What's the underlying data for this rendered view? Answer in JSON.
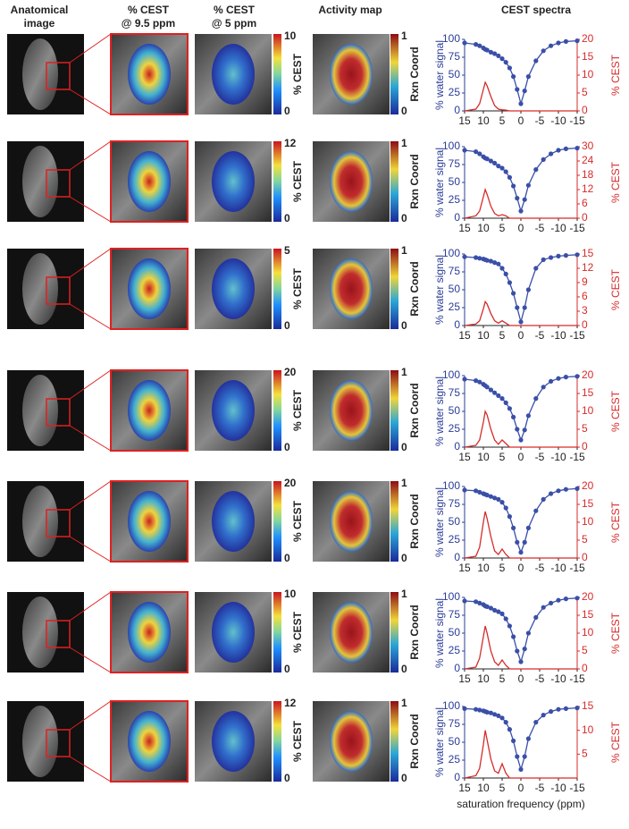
{
  "headers": [
    {
      "lines": [
        "Anatomical",
        "image"
      ]
    },
    {
      "lines": [
        "% CEST",
        "@ 9.5 ppm"
      ]
    },
    {
      "lines": [
        "% CEST",
        "@ 5 ppm"
      ]
    },
    {
      "lines": [
        "Activity map"
      ]
    },
    {
      "lines": [
        "CEST spectra"
      ]
    }
  ],
  "rows": [
    {
      "cest_max": 10,
      "cest_min": 0,
      "cest_label": "% CEST",
      "act_max": 1,
      "act_min": 0,
      "act_label": "Rxn Coord"
    },
    {
      "cest_max": 12,
      "cest_min": 0,
      "cest_label": "% CEST",
      "act_max": 1,
      "act_min": 0,
      "act_label": "Rxn Coord"
    },
    {
      "cest_max": 5,
      "cest_min": 0,
      "cest_label": "% CEST",
      "act_max": 1,
      "act_min": 0,
      "act_label": "Rxn Coord"
    },
    {
      "cest_max": 20,
      "cest_min": 0,
      "cest_label": "% CEST",
      "act_max": 1,
      "act_min": 0,
      "act_label": "Rxn Coord"
    },
    {
      "cest_max": 20,
      "cest_min": 0,
      "cest_label": "% CEST",
      "act_max": 1,
      "act_min": 0,
      "act_label": "Rxn Coord"
    },
    {
      "cest_max": 10,
      "cest_min": 0,
      "cest_label": "% CEST",
      "act_max": 1,
      "act_min": 0,
      "act_label": "Rxn Coord"
    },
    {
      "cest_max": 12,
      "cest_min": 0,
      "cest_label": "% CEST",
      "act_max": 1,
      "act_min": 0,
      "act_label": "Rxn Coord"
    }
  ],
  "chart_data": [
    {
      "type": "line",
      "y_label": "% water signal",
      "y2_label": "% CEST",
      "x": [
        15,
        12,
        11,
        10,
        9.5,
        9,
        8,
        7,
        6,
        5,
        4,
        3,
        2,
        1,
        0,
        -1,
        -2,
        -4,
        -6,
        -8,
        -10,
        -12,
        -15
      ],
      "xlim": [
        15,
        -15
      ],
      "xticks": [
        15,
        10,
        5,
        0,
        -5,
        -10,
        -15
      ],
      "ylim": [
        0,
        100
      ],
      "yticks": [
        0,
        25,
        50,
        75,
        100
      ],
      "y2lim": [
        0,
        20
      ],
      "y2ticks": [
        0,
        5,
        10,
        15,
        20
      ],
      "series": [
        {
          "color": "#3a4fa8",
          "values": [
            95,
            93,
            91,
            88,
            86,
            85,
            82,
            80,
            77,
            73,
            68,
            60,
            48,
            30,
            10,
            28,
            48,
            70,
            84,
            91,
            95,
            97,
            98
          ]
        },
        {
          "color": "#d62b2b",
          "axis": "y2",
          "values": [
            0,
            0.5,
            2,
            6,
            8,
            7,
            4,
            1.5,
            0.5,
            0.3,
            0.2,
            0,
            0,
            0,
            0,
            0,
            0,
            0,
            0,
            0,
            0,
            0,
            0
          ]
        }
      ]
    },
    {
      "type": "line",
      "y_label": "% water signal",
      "y2_label": "% CEST",
      "x": [
        15,
        12,
        11,
        10,
        9.5,
        9,
        8,
        7,
        6,
        5,
        4,
        3,
        2,
        1,
        0,
        -1,
        -2,
        -4,
        -6,
        -8,
        -10,
        -12,
        -15
      ],
      "xlim": [
        15,
        -15
      ],
      "xticks": [
        15,
        10,
        5,
        0,
        -5,
        -10,
        -15
      ],
      "ylim": [
        0,
        100
      ],
      "yticks": [
        0,
        25,
        50,
        75,
        100
      ],
      "y2lim": [
        0,
        30
      ],
      "y2ticks": [
        0,
        6,
        12,
        18,
        24,
        30
      ],
      "series": [
        {
          "color": "#3a4fa8",
          "values": [
            95,
            93,
            90,
            86,
            84,
            83,
            80,
            77,
            73,
            70,
            65,
            57,
            45,
            28,
            10,
            26,
            46,
            68,
            82,
            90,
            95,
            97,
            98
          ]
        },
        {
          "color": "#d62b2b",
          "axis": "y2",
          "values": [
            0,
            1,
            3,
            9,
            12,
            10,
            5,
            2,
            1,
            1.5,
            1,
            0,
            0,
            0,
            0,
            0,
            0,
            0,
            0,
            0,
            0,
            0,
            0
          ]
        }
      ]
    },
    {
      "type": "line",
      "y_label": "% water signal",
      "y2_label": "% CEST",
      "x": [
        15,
        12,
        11,
        10,
        9.5,
        9,
        8,
        7,
        6,
        5,
        4,
        3,
        2,
        1,
        0,
        -1,
        -2,
        -4,
        -6,
        -8,
        -10,
        -12,
        -15
      ],
      "xlim": [
        15,
        -15
      ],
      "xticks": [
        15,
        10,
        5,
        0,
        -5,
        -10,
        -15
      ],
      "ylim": [
        0,
        100
      ],
      "yticks": [
        0,
        25,
        50,
        75,
        100
      ],
      "y2lim": [
        0,
        15
      ],
      "y2ticks": [
        0,
        3,
        6,
        9,
        12,
        15
      ],
      "series": [
        {
          "color": "#3a4fa8",
          "values": [
            96,
            95,
            94,
            93,
            92,
            91,
            90,
            88,
            86,
            80,
            72,
            60,
            45,
            25,
            5,
            25,
            50,
            80,
            92,
            95,
            97,
            98,
            99
          ]
        },
        {
          "color": "#d62b2b",
          "axis": "y2",
          "values": [
            0,
            0.3,
            1,
            3.5,
            5,
            4.5,
            2.5,
            1,
            0.5,
            1,
            0.5,
            0,
            0,
            0,
            0,
            0,
            0,
            0,
            0,
            0,
            0,
            0,
            0
          ]
        }
      ]
    },
    {
      "type": "line",
      "y_label": "% water signal",
      "y2_label": "% CEST",
      "x": [
        15,
        12,
        11,
        10,
        9.5,
        9,
        8,
        7,
        6,
        5,
        4,
        3,
        2,
        1,
        0,
        -1,
        -2,
        -4,
        -6,
        -8,
        -10,
        -12,
        -15
      ],
      "xlim": [
        15,
        -15
      ],
      "xticks": [
        15,
        10,
        5,
        0,
        -5,
        -10,
        -15
      ],
      "ylim": [
        0,
        100
      ],
      "yticks": [
        0,
        25,
        50,
        75,
        100
      ],
      "y2lim": [
        0,
        20
      ],
      "y2ticks": [
        0,
        5,
        10,
        15,
        20
      ],
      "series": [
        {
          "color": "#3a4fa8",
          "values": [
            95,
            93,
            91,
            88,
            86,
            84,
            80,
            76,
            72,
            68,
            62,
            54,
            42,
            25,
            10,
            24,
            44,
            68,
            84,
            92,
            96,
            98,
            99
          ]
        },
        {
          "color": "#d62b2b",
          "axis": "y2",
          "values": [
            0,
            0.5,
            2,
            7,
            10,
            9,
            5,
            2,
            0.8,
            2,
            1,
            0,
            0,
            0,
            0,
            0,
            0,
            0,
            0,
            0,
            0,
            0,
            0
          ]
        }
      ]
    },
    {
      "type": "line",
      "y_label": "% water signal",
      "y2_label": "% CEST",
      "x": [
        15,
        12,
        11,
        10,
        9.5,
        9,
        8,
        7,
        6,
        5,
        4,
        3,
        2,
        1,
        0,
        -1,
        -2,
        -4,
        -6,
        -8,
        -10,
        -12,
        -15
      ],
      "xlim": [
        15,
        -15
      ],
      "xticks": [
        15,
        10,
        5,
        0,
        -5,
        -10,
        -15
      ],
      "ylim": [
        0,
        100
      ],
      "yticks": [
        0,
        25,
        50,
        75,
        100
      ],
      "y2lim": [
        0,
        20
      ],
      "y2ticks": [
        0,
        5,
        10,
        15,
        20
      ],
      "series": [
        {
          "color": "#3a4fa8",
          "values": [
            95,
            94,
            92,
            90,
            89,
            88,
            86,
            84,
            82,
            78,
            70,
            58,
            42,
            22,
            8,
            22,
            42,
            66,
            82,
            90,
            94,
            96,
            97
          ]
        },
        {
          "color": "#d62b2b",
          "axis": "y2",
          "values": [
            0,
            0.5,
            3,
            10,
            13,
            11,
            6,
            2,
            1,
            2.5,
            1,
            0,
            0,
            0,
            0,
            0,
            0,
            0,
            0,
            0,
            0,
            0,
            0
          ]
        }
      ]
    },
    {
      "type": "line",
      "y_label": "% water signal",
      "y2_label": "% CEST",
      "x": [
        15,
        12,
        11,
        10,
        9.5,
        9,
        8,
        7,
        6,
        5,
        4,
        3,
        2,
        1,
        0,
        -1,
        -2,
        -4,
        -6,
        -8,
        -10,
        -12,
        -15
      ],
      "xlim": [
        15,
        -15
      ],
      "xticks": [
        15,
        10,
        5,
        0,
        -5,
        -10,
        -15
      ],
      "ylim": [
        0,
        100
      ],
      "yticks": [
        0,
        25,
        50,
        75,
        100
      ],
      "y2lim": [
        0,
        20
      ],
      "y2ticks": [
        0,
        5,
        10,
        15,
        20
      ],
      "series": [
        {
          "color": "#3a4fa8",
          "values": [
            95,
            94,
            92,
            90,
            88,
            87,
            85,
            82,
            80,
            77,
            70,
            60,
            45,
            25,
            10,
            28,
            50,
            72,
            86,
            92,
            96,
            98,
            99
          ]
        },
        {
          "color": "#d62b2b",
          "axis": "y2",
          "values": [
            0,
            0.5,
            3,
            9,
            12,
            10,
            5,
            2,
            1,
            2.5,
            1,
            0,
            0,
            0,
            0,
            0,
            0,
            0,
            0,
            0,
            0,
            0,
            0
          ]
        }
      ]
    },
    {
      "type": "line",
      "y_label": "% water signal",
      "y2_label": "% CEST",
      "x_label": "saturation frequency (ppm)",
      "x": [
        15,
        12,
        11,
        10,
        9.5,
        9,
        8,
        7,
        6,
        5,
        4,
        3,
        2,
        1,
        0,
        -1,
        -2,
        -4,
        -6,
        -8,
        -10,
        -12,
        -15
      ],
      "xlim": [
        15,
        -15
      ],
      "xticks": [
        15,
        10,
        5,
        0,
        -5,
        -10,
        -15
      ],
      "ylim": [
        0,
        100
      ],
      "yticks": [
        0,
        25,
        50,
        75,
        100
      ],
      "y2lim": [
        0,
        15
      ],
      "y2ticks": [
        5,
        10,
        15
      ],
      "series": [
        {
          "color": "#3a4fa8",
          "values": [
            97,
            96,
            95,
            94,
            93,
            92,
            91,
            89,
            87,
            84,
            78,
            68,
            52,
            30,
            12,
            30,
            55,
            78,
            88,
            93,
            96,
            97,
            98
          ]
        },
        {
          "color": "#d62b2b",
          "axis": "y2",
          "values": [
            0,
            0.5,
            2,
            7,
            10,
            8,
            4,
            1.5,
            1,
            3,
            1,
            0,
            0,
            0,
            0,
            0,
            0,
            0,
            0,
            0,
            0,
            0,
            0
          ]
        }
      ]
    }
  ]
}
